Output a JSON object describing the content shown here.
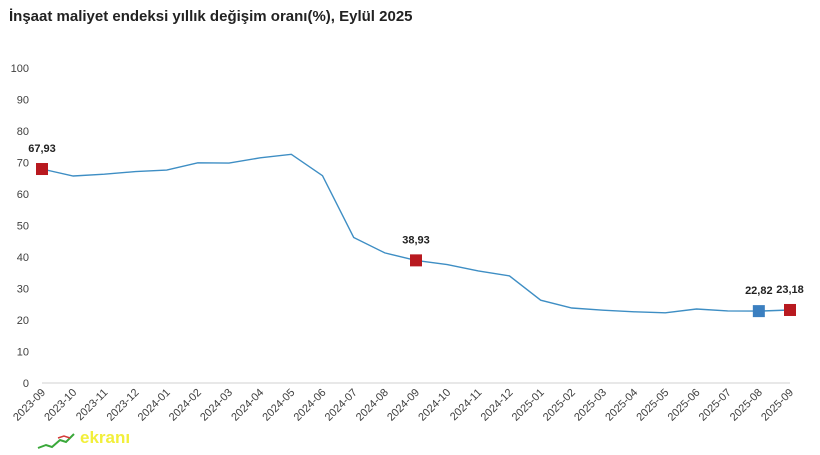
{
  "title": "İnşaat maliyet endeksi yıllık değişim oranı(%), Eylül 2025",
  "chart_data": {
    "type": "line",
    "title": "İnşaat maliyet endeksi yıllık değişim oranı(%), Eylül 2025",
    "xlabel": "",
    "ylabel": "",
    "ylim": [
      0,
      100
    ],
    "yticks": [
      "0",
      "10",
      "20",
      "30",
      "40",
      "50",
      "60",
      "70",
      "80",
      "90",
      "100"
    ],
    "grid": false,
    "legend": "none",
    "categories": [
      "2023-09",
      "2023-10",
      "2023-11",
      "2023-12",
      "2024-01",
      "2024-02",
      "2024-03",
      "2024-04",
      "2024-05",
      "2024-06",
      "2024-07",
      "2024-08",
      "2024-09",
      "2024-10",
      "2024-11",
      "2024-12",
      "2025-01",
      "2025-02",
      "2025-03",
      "2025-04",
      "2025-05",
      "2025-06",
      "2025-07",
      "2025-08",
      "2025-09"
    ],
    "series": [
      {
        "color": "#3e8ec4",
        "values": [
          67.93,
          65.7,
          66.3,
          67.1,
          67.6,
          69.9,
          69.8,
          71.5,
          72.6,
          65.8,
          46.2,
          41.3,
          38.93,
          37.6,
          35.6,
          34.0,
          26.3,
          23.8,
          23.1,
          22.6,
          22.3,
          23.5,
          22.9,
          22.82,
          23.18
        ]
      }
    ],
    "highlights": [
      {
        "index": 0,
        "label": "67,93",
        "color": "#b8191f"
      },
      {
        "index": 12,
        "label": "38,93",
        "color": "#b8191f"
      },
      {
        "index": 23,
        "label": "22,82",
        "color": "#3b7fc0"
      },
      {
        "index": 24,
        "label": "23,18",
        "color": "#b8191f"
      }
    ]
  },
  "watermark": {
    "text": "ekranı",
    "color": "#f2ef3a"
  }
}
